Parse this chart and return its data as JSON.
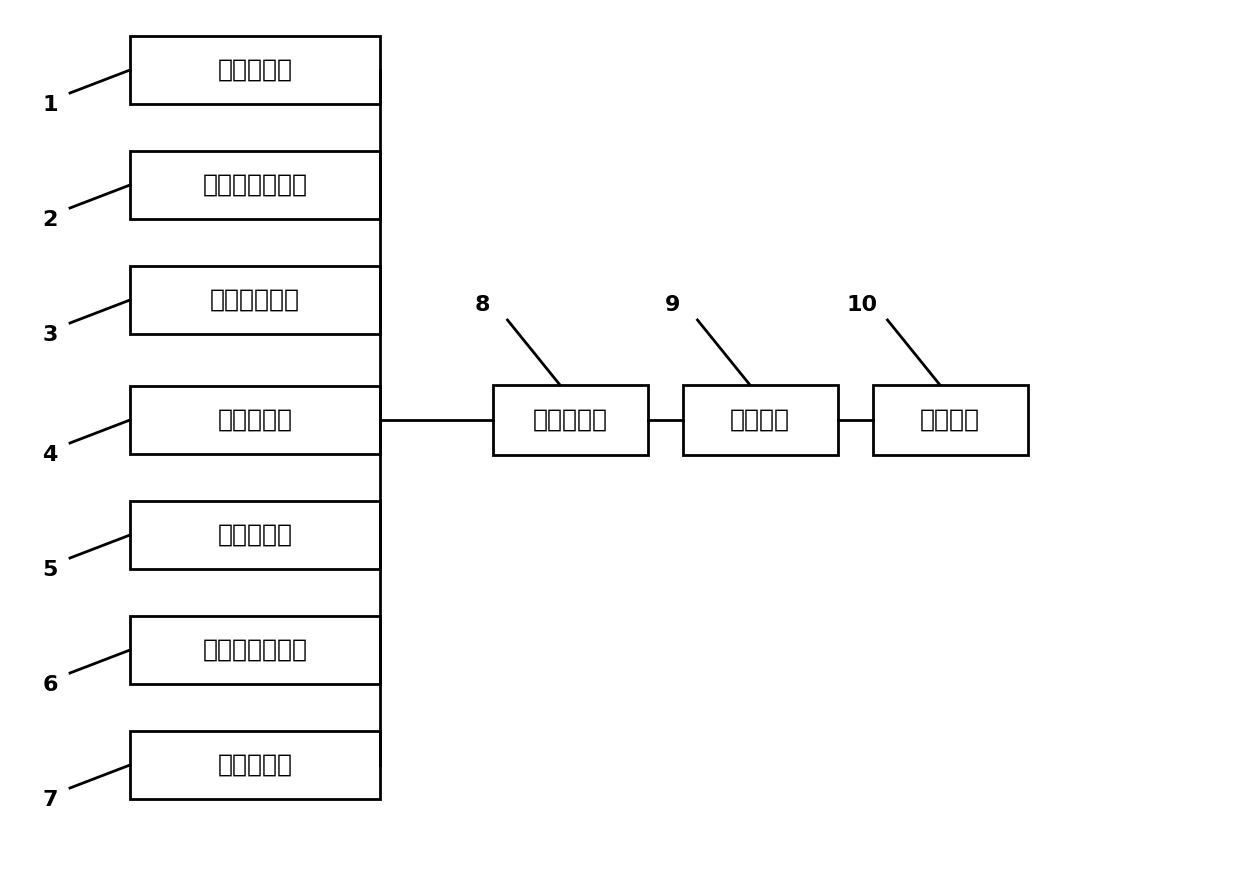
{
  "background_color": "#ffffff",
  "sensors": [
    {
      "label": "氨气传感器",
      "row": 0
    },
    {
      "label": "二氧化碳传感器",
      "row": 1
    },
    {
      "label": "硫化氢传感器",
      "row": 2
    },
    {
      "label": "温度传感器",
      "row": 3
    },
    {
      "label": "湿度传感器",
      "row": 4
    },
    {
      "label": "光照强度传感器",
      "row": 5
    },
    {
      "label": "风速传感器",
      "row": 6
    }
  ],
  "modules": [
    {
      "label": "归一化模块",
      "col": 0
    },
    {
      "label": "滤波模块",
      "col": 1
    },
    {
      "label": "降噪模块",
      "col": 2
    }
  ],
  "sensor_numbers": [
    "1",
    "2",
    "3",
    "4",
    "5",
    "6",
    "7"
  ],
  "module_numbers": [
    "8",
    "9",
    "10"
  ],
  "line_color": "#000000",
  "line_width": 2.0,
  "font_size_label": 18,
  "font_size_number": 16
}
